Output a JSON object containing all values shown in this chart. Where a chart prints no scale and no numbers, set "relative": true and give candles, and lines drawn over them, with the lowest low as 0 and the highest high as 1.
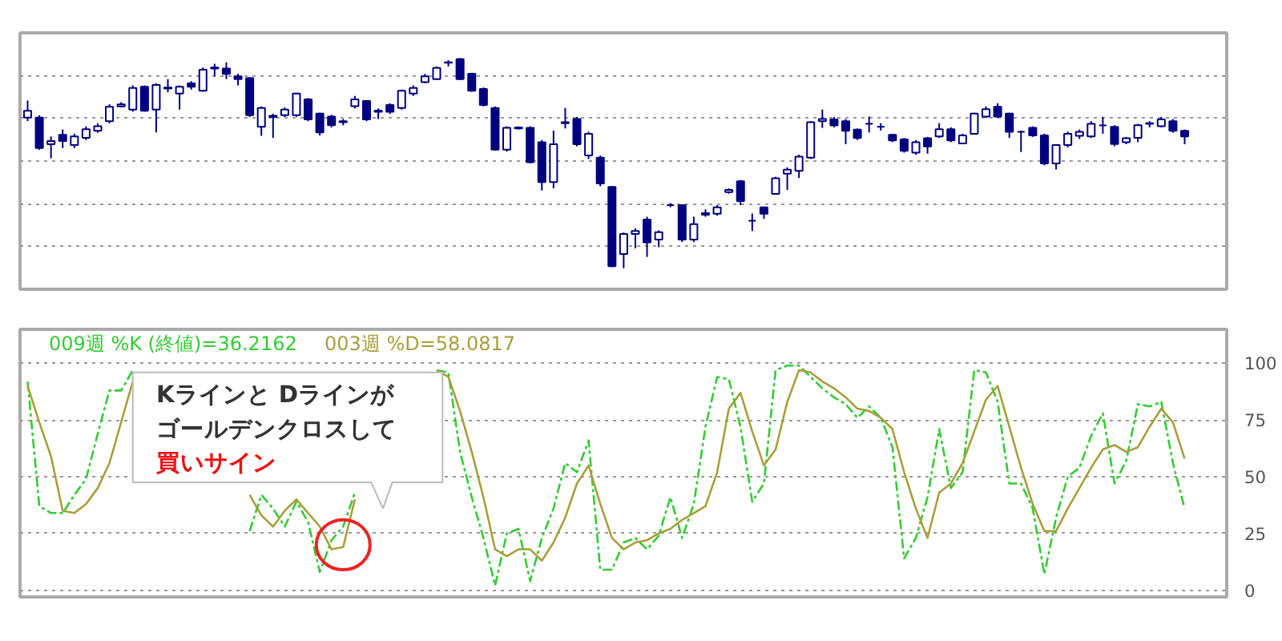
{
  "chart_data": [
    {
      "type": "candlestick",
      "relative": true,
      "grid": "y",
      "categories": [
        null,
        null,
        null,
        null,
        null,
        null,
        null,
        null,
        null,
        null,
        null,
        null,
        null,
        null,
        null,
        null,
        null,
        null,
        null,
        null,
        null,
        null,
        null,
        null,
        null,
        null,
        null,
        null,
        null,
        null,
        null,
        null,
        null,
        null,
        null,
        null,
        null,
        null,
        null,
        null,
        null,
        null,
        null,
        null,
        null,
        null,
        null,
        null,
        null,
        null,
        null,
        null,
        null,
        null,
        null,
        null,
        null,
        null,
        null,
        null,
        null,
        null,
        null,
        null,
        null,
        null,
        null,
        null,
        null,
        null,
        null,
        null,
        null,
        null,
        null,
        null,
        null,
        null,
        null,
        null,
        null,
        null,
        null,
        null,
        null,
        null,
        null,
        null,
        null,
        null,
        null,
        null,
        null,
        null,
        null,
        null,
        null,
        null,
        null,
        null
      ],
      "series": [
        {
          "color": "#000080",
          "ohlc": [
            [
              0.717,
              0.798,
              0.7,
              0.749
            ],
            [
              0.717,
              0.728,
              0.564,
              0.572
            ],
            [
              0.59,
              0.627,
              0.523,
              0.605
            ],
            [
              0.635,
              0.66,
              0.572,
              0.605
            ],
            [
              0.586,
              0.64,
              0.572,
              0.627
            ],
            [
              0.621,
              0.675,
              0.61,
              0.662
            ],
            [
              0.654,
              0.69,
              0.645,
              0.676
            ],
            [
              0.7,
              0.78,
              0.69,
              0.768
            ],
            [
              0.77,
              0.79,
              0.765,
              0.78
            ],
            [
              0.755,
              0.87,
              0.745,
              0.858
            ],
            [
              0.864,
              0.87,
              0.745,
              0.749
            ],
            [
              0.755,
              0.88,
              0.646,
              0.872
            ],
            [
              0.855,
              0.9,
              0.837,
              0.86
            ],
            [
              0.831,
              0.87,
              0.755,
              0.864
            ],
            [
              0.88,
              0.89,
              0.85,
              0.864
            ],
            [
              0.845,
              0.955,
              0.84,
              0.945
            ],
            [
              0.95,
              0.973,
              0.913,
              0.955
            ],
            [
              0.95,
              0.98,
              0.9,
              0.925
            ],
            [
              0.913,
              0.925,
              0.87,
              0.9
            ],
            [
              0.905,
              0.91,
              0.72,
              0.728
            ],
            [
              0.673,
              0.77,
              0.63,
              0.763
            ],
            [
              0.72,
              0.735,
              0.62,
              0.725
            ],
            [
              0.728,
              0.765,
              0.72,
              0.755
            ],
            [
              0.728,
              0.835,
              0.72,
              0.831
            ],
            [
              0.804,
              0.81,
              0.7,
              0.708
            ],
            [
              0.736,
              0.74,
              0.632,
              0.646
            ],
            [
              0.722,
              0.73,
              0.67,
              0.681
            ],
            [
              0.695,
              0.71,
              0.68,
              0.7
            ],
            [
              0.771,
              0.82,
              0.76,
              0.804
            ],
            [
              0.796,
              0.8,
              0.7,
              0.708
            ],
            [
              0.75,
              0.76,
              0.71,
              0.744
            ],
            [
              0.777,
              0.785,
              0.735,
              0.744
            ],
            [
              0.763,
              0.85,
              0.755,
              0.845
            ],
            [
              0.831,
              0.87,
              0.82,
              0.858
            ],
            [
              0.886,
              0.925,
              0.88,
              0.913
            ],
            [
              0.9,
              0.96,
              0.897,
              0.953
            ],
            [
              0.98,
              0.99,
              0.96,
              0.978
            ],
            [
              0.995,
              1.0,
              0.895,
              0.9
            ],
            [
              0.926,
              0.93,
              0.84,
              0.845
            ],
            [
              0.853,
              0.86,
              0.77,
              0.777
            ],
            [
              0.763,
              0.77,
              0.56,
              0.564
            ],
            [
              0.564,
              0.675,
              0.555,
              0.668
            ],
            [
              0.67,
              0.675,
              0.66,
              0.665
            ],
            [
              0.668,
              0.675,
              0.5,
              0.504
            ],
            [
              0.6,
              0.61,
              0.37,
              0.41
            ],
            [
              0.41,
              0.655,
              0.38,
              0.59
            ],
            [
              0.695,
              0.763,
              0.665,
              0.69
            ],
            [
              0.71,
              0.72,
              0.58,
              0.59
            ],
            [
              0.537,
              0.65,
              0.52,
              0.64
            ],
            [
              0.526,
              0.536,
              0.39,
              0.403
            ],
            [
              0.387,
              0.39,
              0.005,
              0.01
            ],
            [
              0.068,
              0.17,
              0.0,
              0.163
            ],
            [
              0.163,
              0.19,
              0.095,
              0.177
            ],
            [
              0.232,
              0.245,
              0.054,
              0.123
            ],
            [
              0.136,
              0.18,
              0.1,
              0.172
            ],
            [
              0.3,
              0.31,
              0.29,
              0.3
            ],
            [
              0.3,
              0.305,
              0.125,
              0.136
            ],
            [
              0.136,
              0.245,
              0.125,
              0.21
            ],
            [
              0.255,
              0.28,
              0.245,
              0.262
            ],
            [
              0.259,
              0.3,
              0.25,
              0.29
            ],
            [
              0.362,
              0.38,
              0.355,
              0.373
            ],
            [
              0.414,
              0.42,
              0.3,
              0.319
            ],
            [
              0.226,
              0.26,
              0.177,
              0.226
            ],
            [
              0.29,
              0.29,
              0.235,
              0.259
            ],
            [
              0.354,
              0.435,
              0.35,
              0.428
            ],
            [
              0.45,
              0.48,
              0.373,
              0.469
            ],
            [
              0.463,
              0.54,
              0.43,
              0.531
            ],
            [
              0.526,
              0.7,
              0.52,
              0.695
            ],
            [
              0.7,
              0.755,
              0.668,
              0.71
            ],
            [
              0.708,
              0.72,
              0.67,
              0.68
            ],
            [
              0.7,
              0.71,
              0.59,
              0.654
            ],
            [
              0.66,
              0.665,
              0.61,
              0.62
            ],
            [
              0.687,
              0.722,
              0.646,
              0.687
            ],
            [
              0.673,
              0.69,
              0.655,
              0.673
            ],
            [
              0.635,
              0.64,
              0.6,
              0.608
            ],
            [
              0.613,
              0.62,
              0.55,
              0.559
            ],
            [
              0.55,
              0.61,
              0.54,
              0.6
            ],
            [
              0.619,
              0.625,
              0.545,
              0.58
            ],
            [
              0.627,
              0.69,
              0.62,
              0.662
            ],
            [
              0.662,
              0.67,
              0.6,
              0.608
            ],
            [
              0.594,
              0.64,
              0.59,
              0.632
            ],
            [
              0.64,
              0.74,
              0.635,
              0.736
            ],
            [
              0.722,
              0.77,
              0.715,
              0.757
            ],
            [
              0.768,
              0.785,
              0.715,
              0.722
            ],
            [
              0.736,
              0.74,
              0.62,
              0.649
            ],
            [
              0.649,
              0.655,
              0.553,
              0.649
            ],
            [
              0.668,
              0.675,
              0.625,
              0.632
            ],
            [
              0.632,
              0.64,
              0.49,
              0.499
            ],
            [
              0.499,
              0.59,
              0.47,
              0.586
            ],
            [
              0.586,
              0.65,
              0.575,
              0.64
            ],
            [
              0.63,
              0.66,
              0.615,
              0.649
            ],
            [
              0.627,
              0.7,
              0.62,
              0.687
            ],
            [
              0.68,
              0.72,
              0.64,
              0.68
            ],
            [
              0.673,
              0.68,
              0.58,
              0.591
            ],
            [
              0.6,
              0.625,
              0.59,
              0.619
            ],
            [
              0.621,
              0.687,
              0.6,
              0.681
            ],
            [
              0.687,
              0.7,
              0.67,
              0.69
            ],
            [
              0.676,
              0.72,
              0.67,
              0.708
            ],
            [
              0.7,
              0.71,
              0.645,
              0.654
            ],
            [
              0.654,
              0.66,
              0.59,
              0.627
            ]
          ]
        }
      ]
    },
    {
      "type": "line",
      "legend": "top left",
      "grid": "y",
      "tick_labels": "y",
      "marker": "none",
      "ylim": [
        -3,
        115
      ],
      "yticks": [
        0,
        25,
        50,
        75,
        100
      ],
      "categories": [
        null,
        null,
        null,
        null,
        null,
        null,
        null,
        null,
        null,
        null,
        null,
        null,
        null,
        null,
        null,
        null,
        null,
        null,
        null,
        null,
        null,
        null,
        null,
        null,
        null,
        null,
        null,
        null,
        null,
        null,
        null,
        null,
        null,
        null,
        null,
        null,
        null,
        null,
        null,
        null,
        null,
        null,
        null,
        null,
        null,
        null,
        null,
        null,
        null,
        null,
        null,
        null,
        null,
        null,
        null,
        null,
        null,
        null,
        null,
        null,
        null,
        null,
        null,
        null,
        null,
        null,
        null,
        null,
        null,
        null,
        null,
        null,
        null,
        null,
        null,
        null,
        null,
        null,
        null,
        null,
        null,
        null,
        null,
        null,
        null,
        null,
        null,
        null,
        null,
        null,
        null,
        null,
        null,
        null,
        null,
        null,
        null,
        null,
        null,
        null
      ],
      "series": [
        {
          "name": "009週 %K (終値)=36.2162",
          "color": "#33cc33",
          "line_style": "dashed",
          "values": [
            92,
            37,
            34,
            34,
            42,
            49,
            69,
            88,
            88,
            97,
            null,
            null,
            null,
            null,
            null,
            null,
            null,
            null,
            null,
            26,
            42,
            36,
            28,
            39,
            30,
            8,
            22,
            28,
            43,
            null,
            null,
            null,
            null,
            null,
            null,
            97,
            96,
            61,
            41,
            23,
            2,
            25,
            27,
            4,
            23,
            36,
            56,
            52,
            66,
            9,
            9,
            21,
            23,
            18,
            24,
            41,
            23,
            38,
            72,
            94,
            93,
            72,
            39,
            47,
            97,
            99,
            99,
            94,
            89,
            85,
            82,
            76,
            81,
            76,
            63,
            14,
            23,
            41,
            71,
            45,
            52,
            97,
            96,
            83,
            47,
            47,
            36,
            7,
            32,
            50,
            54,
            68,
            78,
            47,
            57,
            82,
            81,
            83,
            56,
            36
          ]
        },
        {
          "name": "003週 %D=58.0817",
          "color": "#a89f3c",
          "line_style": "solid",
          "values": [
            90,
            74,
            59,
            35,
            34,
            38,
            45,
            56,
            74,
            92,
            null,
            null,
            null,
            null,
            null,
            null,
            null,
            null,
            null,
            42,
            33,
            28,
            35,
            40,
            34,
            28,
            18,
            19,
            40,
            null,
            null,
            null,
            null,
            null,
            null,
            97,
            94,
            79,
            61,
            41,
            18,
            15,
            18,
            18,
            13,
            21,
            32,
            47,
            55,
            38,
            23,
            18,
            21,
            22,
            25,
            27,
            31,
            34,
            37,
            52,
            80,
            87,
            70,
            55,
            62,
            83,
            97,
            96,
            92,
            89,
            85,
            80,
            79,
            76,
            71,
            52,
            36,
            23,
            43,
            47,
            56,
            70,
            84,
            90,
            72,
            54,
            38,
            26,
            26,
            36,
            45,
            54,
            62,
            64,
            61,
            63,
            72,
            80,
            74,
            58
          ]
        }
      ],
      "annotations": [
        "Kラインと Dラインが",
        "ゴールデンクロスして",
        "買いサイン"
      ]
    }
  ]
}
